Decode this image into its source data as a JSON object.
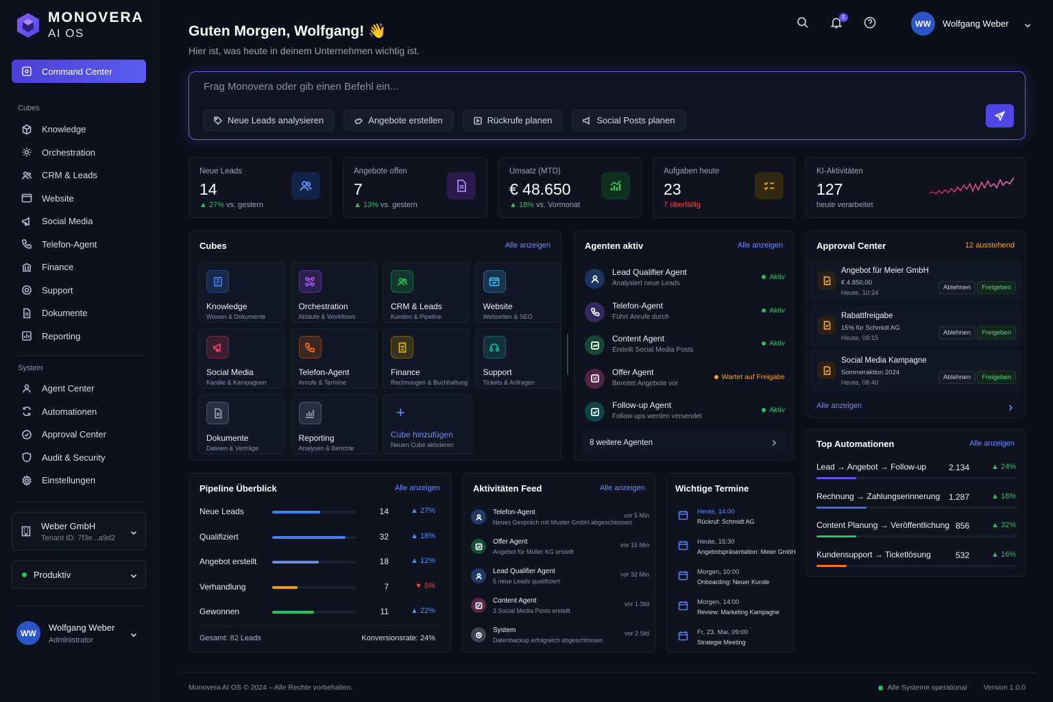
{
  "brand": {
    "line1": "MONOVERA",
    "line2": "AI OS"
  },
  "sidebar": {
    "command_center": "Command Center",
    "cubes_title": "Cubes",
    "cubes": [
      "Knowledge",
      "Orchestration",
      "CRM & Leads",
      "Website",
      "Social Media",
      "Telefon-Agent",
      "Finance",
      "Support",
      "Dokumente",
      "Reporting"
    ],
    "system_title": "System",
    "system": [
      "Agent Center",
      "Automationen",
      "Approval Center",
      "Audit & Security",
      "Einstellungen"
    ],
    "tenant_name": "Weber GmbH",
    "tenant_id": "Tenant ID: 7f3e...a9d2",
    "environment": "Produktiv",
    "user_initials": "WW",
    "user_name": "Wolfgang Weber",
    "user_role": "Administrator"
  },
  "header": {
    "greeting": "Guten Morgen, Wolfgang! 👋",
    "subtitle": "Hier ist, was heute in deinem Unternehmen wichtig ist.",
    "notification_count": "5",
    "user_initials": "WW",
    "user_name": "Wolfgang Weber"
  },
  "prompt": {
    "placeholder": "Frag Monovera oder gib einen Befehl ein...",
    "chips": [
      "Neue Leads analysieren",
      "Angebote erstellen",
      "Rückrufe planen",
      "Social Posts planen"
    ]
  },
  "kpis": [
    {
      "label": "Neue Leads",
      "value": "14",
      "change": "▲ 27%",
      "note": " vs. gestern",
      "color": "#3b6df0"
    },
    {
      "label": "Angebote offen",
      "value": "7",
      "change": "▲ 13%",
      "note": " vs. gestern",
      "color": "#8b5cf6"
    },
    {
      "label": "Umsatz (MTD)",
      "value": "€ 48.650",
      "change": "▲ 18%",
      "note": " vs. Vormonat",
      "color": "#22c55e"
    },
    {
      "label": "Aufgaben heute",
      "value": "23",
      "change": "7",
      "note": " überfällig",
      "color": "#e0a423"
    },
    {
      "label": "KI-Aktivitäten",
      "value": "127",
      "change": "",
      "note": "heute verarbeitet",
      "color": "#ec4899"
    }
  ],
  "cubes_panel": {
    "title": "Cubes",
    "link": "Alle anzeigen",
    "items": [
      {
        "name": "Knowledge",
        "desc": "Wissen & Dokumente",
        "color": "#3b82f6",
        "icon": "book-icon"
      },
      {
        "name": "Orchestration",
        "desc": "Abläufe & Workflows",
        "color": "#a855f7",
        "icon": "workflow-icon"
      },
      {
        "name": "CRM & Leads",
        "desc": "Kunden & Pipeline",
        "color": "#22c55e",
        "icon": "users-icon"
      },
      {
        "name": "Website",
        "desc": "Webseiten & SEO",
        "color": "#38bdf8",
        "icon": "browser-icon"
      },
      {
        "name": "Social Media",
        "desc": "Kanäle & Kampagnen",
        "color": "#f43f5e",
        "icon": "megaphone-icon"
      },
      {
        "name": "Telefon-Agent",
        "desc": "Anrufe & Termine",
        "color": "#f97316",
        "icon": "phone-icon"
      },
      {
        "name": "Finance",
        "desc": "Rechnungen & Buchhaltung",
        "color": "#eab308",
        "icon": "invoice-icon"
      },
      {
        "name": "Support",
        "desc": "Tickets & Anfragen",
        "color": "#14b8a6",
        "icon": "headset-icon"
      },
      {
        "name": "Dokumente",
        "desc": "Dateien & Verträge",
        "color": "#94a3b8",
        "icon": "document-icon"
      },
      {
        "name": "Reporting",
        "desc": "Analysen & Berichte",
        "color": "#94a3b8",
        "icon": "chart-icon"
      }
    ],
    "add_label": "Cube hinzufügen",
    "add_desc": "Neuen Cube aktivieren"
  },
  "agents_panel": {
    "title": "Agenten aktiv",
    "link": "Alle anzeigen",
    "items": [
      {
        "name": "Lead Qualifier Agent",
        "desc": "Analysiert neue Leads",
        "status": "Aktiv",
        "color": "#3b82f6"
      },
      {
        "name": "Telefon-Agent",
        "desc": "Führt Anrufe durch",
        "status": "Aktiv",
        "color": "#8b5cf6"
      },
      {
        "name": "Content Agent",
        "desc": "Erstellt Social Media Posts",
        "status": "Aktiv",
        "color": "#22c55e"
      },
      {
        "name": "Offer Agent",
        "desc": "Bereitet Angebote vor",
        "status": "Wartet auf Freigabe",
        "color": "#ec4899"
      },
      {
        "name": "Follow-up Agent",
        "desc": "Follow-ups werden versendet",
        "status": "Aktiv",
        "color": "#14b8a6"
      }
    ],
    "more": "8 weitere Agenten"
  },
  "approval_panel": {
    "title": "Approval Center",
    "pending": "12 ausstehend",
    "items": [
      {
        "name": "Angebot für Meier GmbH",
        "desc": "€ 4.850,00",
        "time": "Heute, 10:24"
      },
      {
        "name": "Rabattfreigabe",
        "desc": "15% für Schmidt AG",
        "time": "Heute, 09:15"
      },
      {
        "name": "Social Media Kampagne",
        "desc": "Sommeraktion 2024",
        "time": "Heute, 08:40"
      }
    ],
    "reject": "Ablehnen",
    "approve": "Freigeben",
    "link": "Alle anzeigen"
  },
  "automations_panel": {
    "title": "Top Automationen",
    "link": "Alle anzeigen",
    "items": [
      {
        "name": "Lead → Angebot → Follow-up",
        "value": "2.134",
        "change": "▲ 24%",
        "fill": 0.2,
        "color": "#6d4df0"
      },
      {
        "name": "Rechnung → Zahlungserinnerung",
        "value": "1.287",
        "change": "▲ 18%",
        "fill": 0.25,
        "color": "#3b6df0"
      },
      {
        "name": "Content Planung → Veröffentlichung",
        "value": "856",
        "change": "▲ 32%",
        "fill": 0.2,
        "color": "#22c55e"
      },
      {
        "name": "Kundensupport → Ticketlösung",
        "value": "532",
        "change": "▲ 16%",
        "fill": 0.15,
        "color": "#f97316"
      }
    ]
  },
  "pipeline_panel": {
    "title": "Pipeline Überblick",
    "link": "Alle anzeigen",
    "stages": [
      {
        "name": "Neue Leads",
        "value": "14",
        "change": "▲ 27%",
        "fill": 0.57,
        "color": "#3b82f6",
        "down": false
      },
      {
        "name": "Qualifiziert",
        "value": "32",
        "change": "▲ 18%",
        "fill": 0.88,
        "color": "#3b82f6",
        "down": false
      },
      {
        "name": "Angebot erstellt",
        "value": "18",
        "change": "▲ 12%",
        "fill": 0.56,
        "color": "#6b8be0",
        "down": false
      },
      {
        "name": "Verhandlung",
        "value": "7",
        "change": "▼ 5%",
        "fill": 0.3,
        "color": "#f59e0b",
        "down": true
      },
      {
        "name": "Gewonnen",
        "value": "11",
        "change": "▲ 22%",
        "fill": 0.5,
        "color": "#22c55e",
        "down": false
      }
    ],
    "total": "Gesamt: 82 Leads",
    "conversion": "Konversionsrate: 24%"
  },
  "feed_panel": {
    "title": "Aktivitäten Feed",
    "link": "Alle anzeigen",
    "items": [
      {
        "name": "Telefon-Agent",
        "desc": "Neues Gespräch mit Muster GmbH abgeschlossen",
        "time": "vor 5 Min",
        "color": "#3b82f6"
      },
      {
        "name": "Offer Agent",
        "desc": "Angebot für Müller KG erstellt",
        "time": "vor 15 Min",
        "color": "#22c55e"
      },
      {
        "name": "Lead Qualifier Agent",
        "desc": "5 neue Leads qualifiziert",
        "time": "vor 32 Min",
        "color": "#3b82f6"
      },
      {
        "name": "Content Agent",
        "desc": "3 Social Media Posts erstellt",
        "time": "vor 1 Std",
        "color": "#ec4899"
      },
      {
        "name": "System",
        "desc": "Datenbackup erfolgreich abgeschlossen",
        "time": "vor 2 Std",
        "color": "#94a3b8"
      }
    ]
  },
  "termine_panel": {
    "title": "Wichtige Termine",
    "items": [
      {
        "time": "Heute, 14:00",
        "desc": "Rückruf: Schmidt AG",
        "today": true
      },
      {
        "time": "Heute, 15:30",
        "desc": "Angebotspräsentation: Meier GmbH",
        "today": false
      },
      {
        "time": "Morgen, 10:00",
        "desc": "Onboarding: Neuer Kunde",
        "today": false
      },
      {
        "time": "Morgen, 14:00",
        "desc": "Review: Marketing Kampagne",
        "today": false
      },
      {
        "time": "Fr, 23. Mai, 09:00",
        "desc": "Strategie Meeting",
        "today": false
      }
    ]
  },
  "footer": {
    "copyright": "Monovera AI OS © 2024 – Alle Rechte vorbehalten.",
    "status": "Alle Systeme operational",
    "version": "Version 1.0.0"
  }
}
